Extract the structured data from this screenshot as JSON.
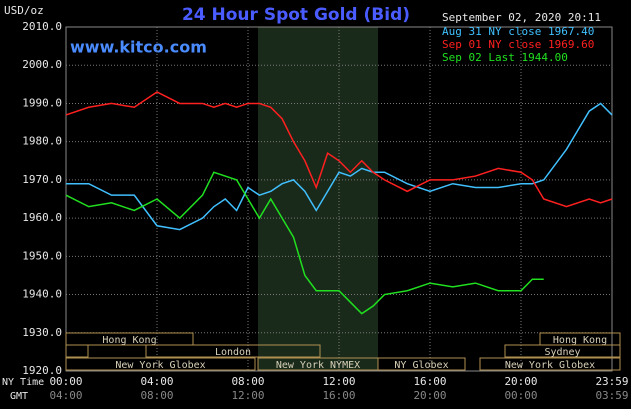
{
  "chart_data": {
    "type": "line",
    "title": "24 Hour Spot Gold (Bid)",
    "unit_label": "USD/oz",
    "website": "www.kitco.com",
    "timestamp": "September 02, 2020 20:11",
    "x_axis_label": "NY Time",
    "x2_axis_label": "GMT",
    "xlim": [
      0,
      24
    ],
    "xticks": [
      {
        "value": 0,
        "label": "00:00"
      },
      {
        "value": 4,
        "label": "04:00"
      },
      {
        "value": 8,
        "label": "08:00"
      },
      {
        "value": 12,
        "label": "12:00"
      },
      {
        "value": 16,
        "label": "16:00"
      },
      {
        "value": 20,
        "label": "20:00"
      },
      {
        "value": 24,
        "label": "23:59"
      }
    ],
    "gmt_tick_labels": [
      "04:00",
      "08:00",
      "12:00",
      "16:00",
      "20:00",
      "00:00",
      "03:59"
    ],
    "ylim": [
      1920,
      2010
    ],
    "yticks": [
      {
        "value": 1920,
        "label": "1920.0"
      },
      {
        "value": 1930,
        "label": "1930.0"
      },
      {
        "value": 1940,
        "label": "1940.0"
      },
      {
        "value": 1950,
        "label": "1950.0"
      },
      {
        "value": 1960,
        "label": "1960.0"
      },
      {
        "value": 1970,
        "label": "1970.0"
      },
      {
        "value": 1980,
        "label": "1980.0"
      },
      {
        "value": 1990,
        "label": "1990.0"
      },
      {
        "value": 2000,
        "label": "2000.0"
      },
      {
        "value": 2010,
        "label": "2010.0"
      }
    ],
    "grid": true,
    "sessions": [
      "Hong Kong",
      "Hong Kong",
      "London",
      "Sydney",
      "New York Globex",
      "New York NYMEX",
      "NY Globex",
      "New York Globex"
    ],
    "x": [
      0,
      1,
      2,
      3,
      4,
      5,
      6,
      6.5,
      7,
      7.5,
      8,
      8.5,
      9,
      9.5,
      10,
      10.5,
      11,
      11.5,
      12,
      12.5,
      13,
      13.5,
      14,
      15,
      16,
      17,
      18,
      19,
      20,
      20.5,
      21,
      22,
      23,
      23.5,
      24
    ],
    "series": [
      {
        "name": "Aug 31 NY close 1967.40",
        "color": "#40c0ff",
        "values": [
          1969,
          1969,
          1966,
          1966,
          1958,
          1957,
          1960,
          1963,
          1965,
          1962,
          1968,
          1966,
          1967,
          1969,
          1970,
          1967,
          1962,
          1967,
          1972,
          1971,
          1973,
          1972,
          1972,
          1969,
          1967,
          1969,
          1968,
          1968,
          1969,
          1969,
          1970,
          1978,
          1988,
          1990,
          1987
        ]
      },
      {
        "name": "Sep 01 NY close 1969.60",
        "color": "#ff2020",
        "values": [
          1987,
          1989,
          1990,
          1989,
          1993,
          1990,
          1990,
          1989,
          1990,
          1989,
          1990,
          1990,
          1989,
          1986,
          1980,
          1975,
          1968,
          1977,
          1975,
          1972,
          1975,
          1972,
          1970,
          1967,
          1970,
          1970,
          1971,
          1973,
          1972,
          1970,
          1965,
          1963,
          1965,
          1964,
          1965
        ]
      },
      {
        "name": "Sep 02 Last 1944.00",
        "color": "#20e020",
        "values": [
          1966,
          1963,
          1964,
          1962,
          1965,
          1960,
          1966,
          1972,
          1971,
          1970,
          1965,
          1960,
          1965,
          1960,
          1955,
          1945,
          1941,
          1941,
          1941,
          1938,
          1935,
          1937,
          1940,
          1941,
          1943,
          1942,
          1943,
          1941,
          1941,
          1944,
          1944,
          null,
          null,
          null,
          null
        ]
      }
    ]
  }
}
